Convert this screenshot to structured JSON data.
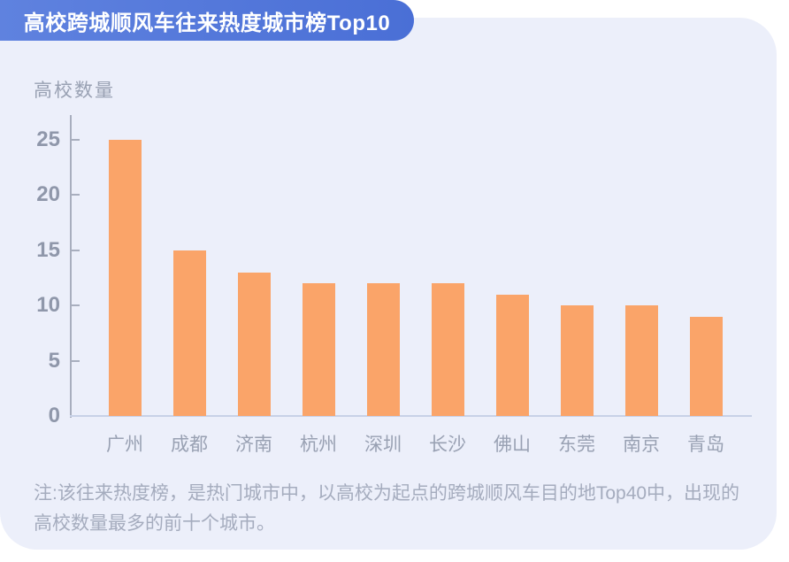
{
  "header": {
    "title": "高校跨城顺风车往来热度城市榜Top10"
  },
  "chart_data": {
    "type": "bar",
    "title": "高校跨城顺风车往来热度城市榜Top10",
    "ylabel": "高校数量",
    "xlabel": "",
    "categories": [
      "广州",
      "成都",
      "济南",
      "杭州",
      "深圳",
      "长沙",
      "佛山",
      "东莞",
      "南京",
      "青岛"
    ],
    "values": [
      25,
      15,
      13,
      12,
      12,
      12,
      11,
      10,
      10,
      9
    ],
    "ylim": [
      0,
      25
    ],
    "yticks": [
      0,
      5,
      10,
      15,
      20,
      25
    ],
    "grid": false,
    "legend": "none",
    "bar_color": "#FAA469"
  },
  "footnote": {
    "text": "注:该往来热度榜，是热门城市中，以高校为起点的跨城顺风车目的地Top40中，出现的高校数量最多的前十个城市。"
  },
  "colors": {
    "card_bg": "#ECEFFA",
    "banner_start": "#5F82DF",
    "banner_end": "#4A6FD6",
    "bar": "#FAA469",
    "axis": "#A8AEBE",
    "baseline": "#C8D1E7",
    "tick_text": "#8F97AA",
    "label_text": "#99A1B3",
    "note_text": "#A5ACBE"
  }
}
